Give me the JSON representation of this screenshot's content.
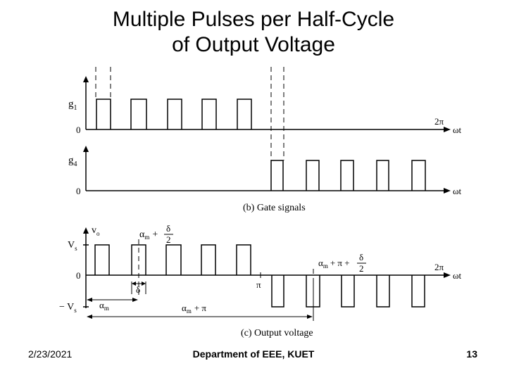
{
  "slide": {
    "title_line1": "Multiple Pulses per Half-Cycle",
    "title_line2": "of Output Voltage"
  },
  "footer": {
    "date": "2/23/2021",
    "department": "Department of EEE, KUET",
    "page": "13"
  },
  "diagram": {
    "g1_label": "g",
    "g1_sub": "1",
    "g4_label": "g",
    "g4_sub": "4",
    "zero": "0",
    "two_pi": "2π",
    "omega_t": "ωt",
    "gate_caption": "(b) Gate signals",
    "vo_label": "v",
    "vo_sub": "o",
    "vs_label": "V",
    "vs_sub": "s",
    "neg_vs_label": "− V",
    "neg_vs_sub": "s",
    "alpha_delta_prefix": "α",
    "alpha_sub": "m",
    "plus": "+",
    "delta": "δ",
    "two": "2",
    "pi": "π",
    "alpha_pi_plus": "+ π +",
    "alpha_pi": "+ π",
    "output_caption": "(c) Output voltage"
  }
}
